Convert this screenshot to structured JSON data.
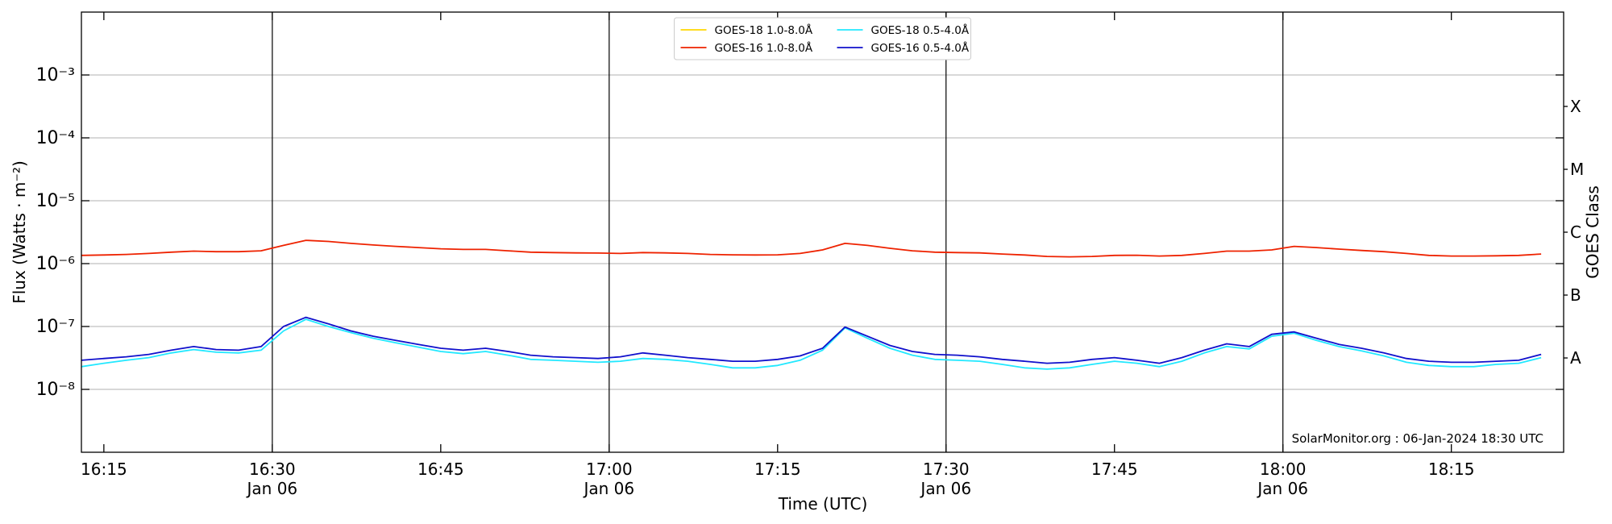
{
  "chart_data": {
    "type": "line",
    "xlabel": "Time (UTC)",
    "ylabel": "Flux (Watts · m⁻²)",
    "y2label": "GOES Class",
    "annotation": "SolarMonitor.org : 06-Jan-2024 18:30 UTC",
    "log_scale": true,
    "grid": true,
    "legend": "upper center",
    "x": [
      "16:13",
      "16:15",
      "16:17",
      "16:19",
      "16:21",
      "16:23",
      "16:25",
      "16:27",
      "16:29",
      "16:31",
      "16:33",
      "16:35",
      "16:37",
      "16:39",
      "16:41",
      "16:43",
      "16:45",
      "16:47",
      "16:49",
      "16:51",
      "16:53",
      "16:55",
      "16:57",
      "16:59",
      "17:01",
      "17:03",
      "17:05",
      "17:07",
      "17:09",
      "17:11",
      "17:13",
      "17:15",
      "17:17",
      "17:19",
      "17:21",
      "17:23",
      "17:25",
      "17:27",
      "17:29",
      "17:31",
      "17:33",
      "17:35",
      "17:37",
      "17:39",
      "17:41",
      "17:43",
      "17:45",
      "17:47",
      "17:49",
      "17:51",
      "17:53",
      "17:55",
      "17:57",
      "17:59",
      "18:01",
      "18:03",
      "18:05",
      "18:07",
      "18:09",
      "18:11",
      "18:13",
      "18:15",
      "18:17",
      "18:19",
      "18:21",
      "18:23"
    ],
    "series": [
      {
        "name": "GOES-18 1.0-8.0Å",
        "color": "#ffd700",
        "values": [
          null,
          null,
          null,
          null,
          null,
          null,
          null,
          null,
          null,
          null,
          null,
          null,
          null,
          null,
          null,
          null,
          null,
          null,
          null,
          null,
          null,
          null,
          null,
          null,
          null,
          null,
          null,
          null,
          null,
          null,
          null,
          null,
          null,
          null,
          null,
          null,
          null,
          null,
          null,
          null,
          null,
          null,
          null,
          null,
          null,
          null,
          null,
          null,
          null,
          null,
          null,
          null,
          null,
          null,
          null,
          null,
          null,
          null,
          null,
          null,
          null,
          null,
          null,
          null,
          null,
          null
        ]
      },
      {
        "name": "GOES-16 1.0-8.0Å",
        "color": "#ee2200",
        "values": [
          1.35e-06,
          1.37e-06,
          1.4e-06,
          1.45e-06,
          1.52e-06,
          1.58e-06,
          1.55e-06,
          1.55e-06,
          1.6e-06,
          1.95e-06,
          2.35e-06,
          2.25e-06,
          2.1e-06,
          1.98e-06,
          1.88e-06,
          1.8e-06,
          1.72e-06,
          1.68e-06,
          1.68e-06,
          1.6e-06,
          1.52e-06,
          1.5e-06,
          1.48e-06,
          1.47e-06,
          1.45e-06,
          1.5e-06,
          1.48e-06,
          1.45e-06,
          1.4e-06,
          1.38e-06,
          1.37e-06,
          1.38e-06,
          1.45e-06,
          1.65e-06,
          2.1e-06,
          1.95e-06,
          1.75e-06,
          1.6e-06,
          1.52e-06,
          1.5e-06,
          1.48e-06,
          1.42e-06,
          1.37e-06,
          1.3e-06,
          1.28e-06,
          1.3e-06,
          1.35e-06,
          1.36e-06,
          1.32e-06,
          1.35e-06,
          1.45e-06,
          1.58e-06,
          1.58e-06,
          1.65e-06,
          1.88e-06,
          1.8e-06,
          1.7e-06,
          1.62e-06,
          1.55e-06,
          1.45e-06,
          1.35e-06,
          1.32e-06,
          1.32e-06,
          1.33e-06,
          1.35e-06,
          1.42e-06
        ]
      },
      {
        "name": "GOES-18 0.5-4.0Å",
        "color": "#22e8ff",
        "values": [
          2.3e-08,
          2.6e-08,
          2.9e-08,
          3.2e-08,
          3.8e-08,
          4.3e-08,
          3.9e-08,
          3.8e-08,
          4.2e-08,
          8.5e-08,
          1.3e-07,
          1e-07,
          8e-08,
          6.5e-08,
          5.5e-08,
          4.7e-08,
          4e-08,
          3.7e-08,
          4e-08,
          3.5e-08,
          3e-08,
          2.9e-08,
          2.8e-08,
          2.7e-08,
          2.8e-08,
          3.1e-08,
          3e-08,
          2.8e-08,
          2.5e-08,
          2.2e-08,
          2.2e-08,
          2.4e-08,
          2.9e-08,
          4.2e-08,
          9.5e-08,
          6.5e-08,
          4.5e-08,
          3.5e-08,
          3e-08,
          2.9e-08,
          2.8e-08,
          2.5e-08,
          2.2e-08,
          2.1e-08,
          2.2e-08,
          2.5e-08,
          2.8e-08,
          2.6e-08,
          2.3e-08,
          2.8e-08,
          3.8e-08,
          4.8e-08,
          4.4e-08,
          7e-08,
          7.8e-08,
          6e-08,
          4.8e-08,
          4.1e-08,
          3.4e-08,
          2.7e-08,
          2.4e-08,
          2.3e-08,
          2.3e-08,
          2.5e-08,
          2.6e-08,
          3.2e-08
        ]
      },
      {
        "name": "GOES-16 0.5-4.0Å",
        "color": "#1010cc",
        "values": [
          2.9e-08,
          3.1e-08,
          3.3e-08,
          3.6e-08,
          4.2e-08,
          4.8e-08,
          4.3e-08,
          4.2e-08,
          4.8e-08,
          1e-07,
          1.4e-07,
          1.1e-07,
          8.5e-08,
          7e-08,
          6e-08,
          5.2e-08,
          4.5e-08,
          4.2e-08,
          4.5e-08,
          4e-08,
          3.5e-08,
          3.3e-08,
          3.2e-08,
          3.1e-08,
          3.3e-08,
          3.8e-08,
          3.5e-08,
          3.2e-08,
          3e-08,
          2.8e-08,
          2.8e-08,
          3e-08,
          3.4e-08,
          4.5e-08,
          9.8e-08,
          7e-08,
          5e-08,
          4e-08,
          3.6e-08,
          3.5e-08,
          3.3e-08,
          3e-08,
          2.8e-08,
          2.6e-08,
          2.7e-08,
          3e-08,
          3.2e-08,
          2.9e-08,
          2.6e-08,
          3.2e-08,
          4.2e-08,
          5.3e-08,
          4.8e-08,
          7.5e-08,
          8.2e-08,
          6.5e-08,
          5.2e-08,
          4.5e-08,
          3.8e-08,
          3.1e-08,
          2.8e-08,
          2.7e-08,
          2.7e-08,
          2.8e-08,
          2.9e-08,
          3.6e-08
        ]
      }
    ],
    "xlim": [
      "16:13",
      "18:25"
    ],
    "xticks": [
      "16:15",
      {
        "value": "16:30",
        "label": "16:30",
        "date": "Jan 06"
      },
      "16:45",
      {
        "value": "17:00",
        "label": "17:00",
        "date": "Jan 06"
      },
      "17:15",
      {
        "value": "17:30",
        "label": "17:30",
        "date": "Jan 06"
      },
      "17:45",
      {
        "value": "18:00",
        "label": "18:00",
        "date": "Jan 06"
      },
      "18:15"
    ],
    "vlines": [
      "16:30",
      "17:00",
      "17:30",
      "18:00"
    ],
    "ylim": [
      1e-09,
      0.01
    ],
    "yticks": [
      {
        "value": 1e-08,
        "label": "10⁻⁸"
      },
      {
        "value": 1e-07,
        "label": "10⁻⁷"
      },
      {
        "value": 1e-06,
        "label": "10⁻⁶"
      },
      {
        "value": 1e-05,
        "label": "10⁻⁵"
      },
      {
        "value": 0.0001,
        "label": "10⁻⁴"
      },
      {
        "value": 0.001,
        "label": "10⁻³"
      }
    ],
    "y2ticks": [
      {
        "value": 3.16e-08,
        "label": "A"
      },
      {
        "value": 3.16e-07,
        "label": "B"
      },
      {
        "value": 3.16e-06,
        "label": "C"
      },
      {
        "value": 3.16e-05,
        "label": "M"
      },
      {
        "value": 0.000316,
        "label": "X"
      }
    ]
  }
}
